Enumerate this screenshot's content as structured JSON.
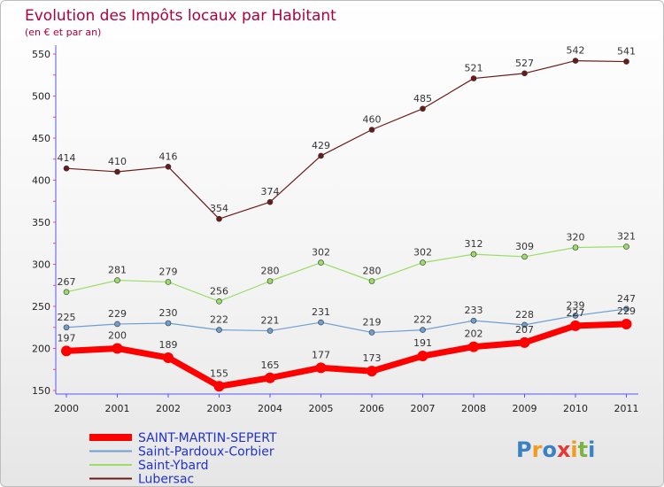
{
  "page": {
    "title": "Evolution des Impôts locaux par Habitant",
    "subtitle": "(en € et par an)",
    "logo": "Proxiti"
  },
  "chart_data": {
    "type": "line",
    "title": "Evolution des Impôts locaux par Habitant",
    "subtitle": "(en € et par an)",
    "xlabel": "",
    "ylabel": "",
    "x": [
      "2000",
      "2001",
      "2002",
      "2003",
      "2004",
      "2005",
      "2006",
      "2007",
      "2008",
      "2009",
      "2010",
      "2011"
    ],
    "ylim": [
      150,
      550
    ],
    "yticks": [
      150,
      200,
      250,
      300,
      350,
      400,
      450,
      500,
      550
    ],
    "legend_position": "bottom-left",
    "series": [
      {
        "name": "SAINT-MARTIN-SEPERT",
        "color": "#ff0000",
        "values": [
          197,
          200,
          189,
          155,
          165,
          177,
          173,
          191,
          202,
          207,
          227,
          229
        ]
      },
      {
        "name": "Saint-Pardoux-Corbier",
        "color": "#6e9fd0",
        "values": [
          225,
          229,
          230,
          222,
          221,
          231,
          219,
          222,
          233,
          228,
          239,
          247
        ]
      },
      {
        "name": "Saint-Ybard",
        "color": "#99dd66",
        "values": [
          267,
          281,
          279,
          256,
          280,
          302,
          280,
          302,
          312,
          309,
          320,
          321
        ]
      },
      {
        "name": "Lubersac",
        "color": "#6b1a1a",
        "values": [
          414,
          410,
          416,
          354,
          374,
          429,
          460,
          485,
          521,
          527,
          542,
          541
        ]
      }
    ]
  }
}
